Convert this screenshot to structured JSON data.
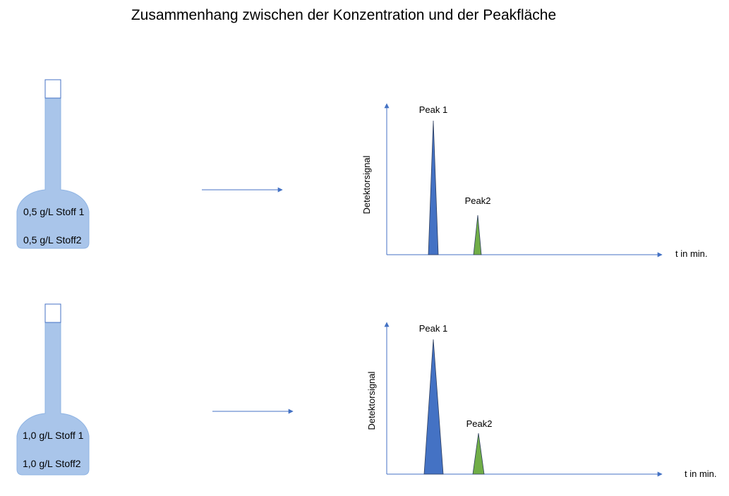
{
  "title": "Zusammenhang zwischen der Konzentration und der Peakfläche",
  "colors": {
    "flask_fill": "#a9c5ea",
    "flask_body": "#8fb4e3",
    "flask_stroke": "#6a94cc",
    "arrow": "#4472c4",
    "axis": "#4472c4",
    "peak1": "#4472c4",
    "peak2": "#70ad47",
    "peak_outline": "#2f3f5f"
  },
  "rows": [
    {
      "flask": {
        "line1": "0,5 g/L Stoff 1",
        "line2": "0,5 g/L Stoff2"
      },
      "chromatogram": {
        "y_axis_label": "Detektorsignal",
        "x_axis_label": "t in min.",
        "peak1_label": "Peak 1",
        "peak2_label": "Peak2"
      }
    },
    {
      "flask": {
        "line1": "1,0 g/L Stoff 1",
        "line2": "1,0 g/L Stoff2"
      },
      "chromatogram": {
        "y_axis_label": "Detektorsignal",
        "x_axis_label": "t in min.",
        "peak1_label": "Peak 1",
        "peak2_label": "Peak2"
      }
    }
  ]
}
